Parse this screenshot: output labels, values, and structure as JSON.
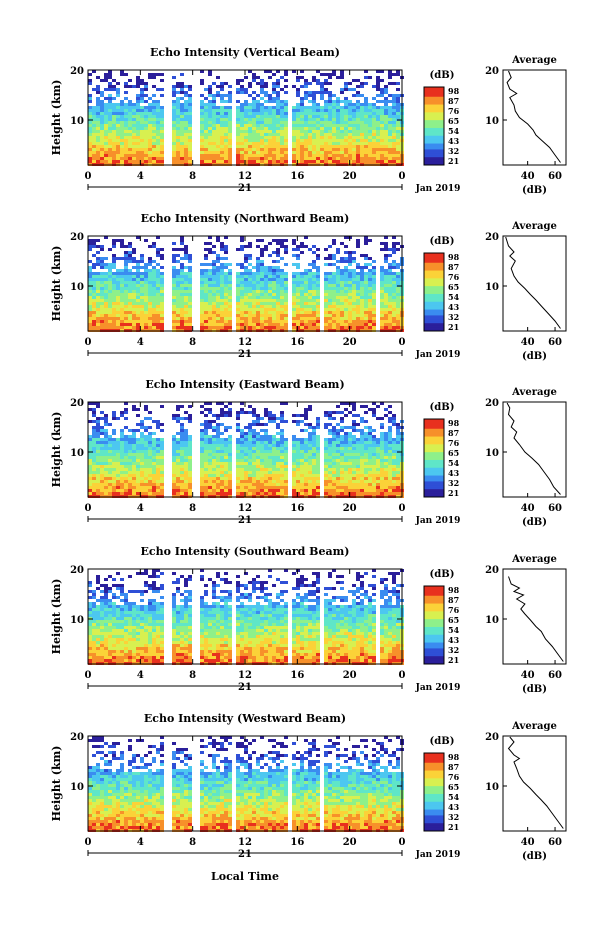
{
  "figure": {
    "xlabel": "Local Time",
    "date_label": "Jan 2019",
    "day_label": "21",
    "ylabel": "Height (km)",
    "cb_unit": "(dB)",
    "avg_title": "Average",
    "avg_xlabel": "(dB)"
  },
  "colormap": [
    "#2b1f9b",
    "#2f4fd6",
    "#3a8cf0",
    "#4cc7f0",
    "#5fe6c8",
    "#8ef08a",
    "#d8f050",
    "#fbd238",
    "#f7902a",
    "#e8301e"
  ],
  "chart_data": [
    {
      "type": "heatmap",
      "title": "Echo Intensity (Vertical Beam)",
      "x_ticks": [
        "0",
        "4",
        "8",
        "12",
        "16",
        "20",
        "0"
      ],
      "y_ticks": [
        "10",
        "20"
      ],
      "ylim": [
        1,
        20
      ],
      "xlim": [
        0,
        24
      ],
      "colorbar_ticks": [
        "98",
        "87",
        "76",
        "65",
        "54",
        "43",
        "32",
        "21"
      ],
      "gaps_hours": [
        [
          5.8,
          6.3
        ],
        [
          7.8,
          8.3
        ],
        [
          10.9,
          11.3
        ],
        [
          15.2,
          15.5
        ],
        [
          15.9,
          16.2
        ]
      ],
      "avg_profile": {
        "type": "line",
        "title": "Average",
        "xlabel": "(dB)",
        "x_ticks": [
          "40",
          "60"
        ],
        "y_ticks": [
          "10",
          "20"
        ],
        "xlim": [
          22,
          68
        ],
        "ylim": [
          1,
          20
        ]
      },
      "profile_points": [
        [
          64,
          1.5
        ],
        [
          60,
          3
        ],
        [
          56,
          4.5
        ],
        [
          50,
          6
        ],
        [
          46,
          7
        ],
        [
          44,
          8
        ],
        [
          40,
          9.2
        ],
        [
          34,
          10.5
        ],
        [
          31,
          11.8
        ],
        [
          30,
          13
        ],
        [
          27,
          14.5
        ],
        [
          32,
          15.3
        ],
        [
          27,
          16.2
        ],
        [
          25,
          17.5
        ],
        [
          28,
          18.5
        ],
        [
          26,
          19.8
        ]
      ]
    },
    {
      "type": "heatmap",
      "title": "Echo Intensity (Northward Beam)",
      "x_ticks": [
        "0",
        "4",
        "8",
        "12",
        "16",
        "20",
        "0"
      ],
      "y_ticks": [
        "10",
        "20"
      ],
      "ylim": [
        1,
        20
      ],
      "xlim": [
        0,
        24
      ],
      "colorbar_ticks": [
        "98",
        "87",
        "76",
        "65",
        "54",
        "43",
        "32",
        "21"
      ],
      "gaps_hours": [
        [
          5.8,
          6.3
        ],
        [
          7.8,
          8.3
        ],
        [
          10.9,
          11.3
        ],
        [
          15.2,
          15.5
        ],
        [
          15.9,
          16.2
        ],
        [
          17.6,
          17.9
        ],
        [
          21.8,
          22.2
        ]
      ],
      "avg_profile": {
        "type": "line",
        "title": "Average",
        "xlabel": "(dB)",
        "x_ticks": [
          "40",
          "60"
        ],
        "y_ticks": [
          "10",
          "20"
        ],
        "xlim": [
          22,
          68
        ],
        "ylim": [
          1,
          20
        ]
      },
      "profile_points": [
        [
          64,
          1.5
        ],
        [
          60,
          3
        ],
        [
          55,
          4.5
        ],
        [
          50,
          6
        ],
        [
          46,
          7.2
        ],
        [
          42,
          8.3
        ],
        [
          38,
          9.5
        ],
        [
          33,
          10.8
        ],
        [
          30,
          12
        ],
        [
          28,
          13.5
        ],
        [
          31,
          15
        ],
        [
          27,
          16
        ],
        [
          30,
          16.8
        ],
        [
          26,
          18
        ],
        [
          24,
          19.8
        ]
      ]
    },
    {
      "type": "heatmap",
      "title": "Echo Intensity (Eastward Beam)",
      "x_ticks": [
        "0",
        "4",
        "8",
        "12",
        "16",
        "20",
        "0"
      ],
      "y_ticks": [
        "10",
        "20"
      ],
      "ylim": [
        1,
        20
      ],
      "xlim": [
        0,
        24
      ],
      "colorbar_ticks": [
        "98",
        "87",
        "76",
        "65",
        "54",
        "43",
        "32",
        "21"
      ],
      "gaps_hours": [
        [
          5.8,
          6.3
        ],
        [
          7.8,
          8.3
        ],
        [
          10.9,
          11.3
        ],
        [
          15.2,
          15.5
        ],
        [
          15.9,
          16.2
        ],
        [
          17.6,
          17.9
        ]
      ],
      "avg_profile": {
        "type": "line",
        "title": "Average",
        "xlabel": "(dB)",
        "x_ticks": [
          "40",
          "60"
        ],
        "y_ticks": [
          "10",
          "20"
        ],
        "xlim": [
          22,
          68
        ],
        "ylim": [
          1,
          20
        ]
      },
      "profile_points": [
        [
          64,
          1.5
        ],
        [
          59,
          3
        ],
        [
          56,
          4.5
        ],
        [
          52,
          6
        ],
        [
          48,
          7.5
        ],
        [
          43,
          8.8
        ],
        [
          38,
          10
        ],
        [
          34,
          11.5
        ],
        [
          30,
          12.8
        ],
        [
          32,
          14
        ],
        [
          28,
          15
        ],
        [
          30,
          16.2
        ],
        [
          26,
          17.5
        ],
        [
          27,
          18.8
        ],
        [
          25,
          19.8
        ]
      ]
    },
    {
      "type": "heatmap",
      "title": "Echo Intensity (Southward Beam)",
      "x_ticks": [
        "0",
        "4",
        "8",
        "12",
        "16",
        "20",
        "0"
      ],
      "y_ticks": [
        "10",
        "20"
      ],
      "ylim": [
        1,
        20
      ],
      "xlim": [
        0,
        24
      ],
      "colorbar_ticks": [
        "98",
        "87",
        "76",
        "65",
        "54",
        "43",
        "32",
        "21"
      ],
      "gaps_hours": [
        [
          5.8,
          6.3
        ],
        [
          7.8,
          8.3
        ],
        [
          10.9,
          11.3
        ],
        [
          15.2,
          15.5
        ],
        [
          15.9,
          16.2
        ],
        [
          17.6,
          17.9
        ],
        [
          21.8,
          22.2
        ]
      ],
      "avg_profile": {
        "type": "line",
        "title": "Average",
        "xlabel": "(dB)",
        "x_ticks": [
          "40",
          "60"
        ],
        "y_ticks": [
          "10",
          "20"
        ],
        "xlim": [
          22,
          68
        ],
        "ylim": [
          1,
          20
        ]
      },
      "profile_points": [
        [
          66,
          1.5
        ],
        [
          62,
          3
        ],
        [
          58,
          4.5
        ],
        [
          53,
          6
        ],
        [
          50,
          7.5
        ],
        [
          46,
          8.5
        ],
        [
          42,
          9.8
        ],
        [
          38,
          11
        ],
        [
          35,
          12
        ],
        [
          38,
          13
        ],
        [
          32,
          14
        ],
        [
          37,
          14.8
        ],
        [
          30,
          15.5
        ],
        [
          34,
          16.2
        ],
        [
          28,
          17
        ],
        [
          26,
          18.5
        ]
      ]
    },
    {
      "type": "heatmap",
      "title": "Echo Intensity (Westward Beam)",
      "x_ticks": [
        "0",
        "4",
        "8",
        "12",
        "16",
        "20",
        "0"
      ],
      "y_ticks": [
        "10",
        "20"
      ],
      "ylim": [
        1,
        20
      ],
      "xlim": [
        0,
        24
      ],
      "colorbar_ticks": [
        "98",
        "87",
        "76",
        "65",
        "54",
        "43",
        "32",
        "21"
      ],
      "gaps_hours": [
        [
          5.8,
          6.3
        ],
        [
          7.8,
          8.3
        ],
        [
          10.9,
          11.3
        ],
        [
          15.2,
          15.5
        ],
        [
          15.9,
          16.2
        ],
        [
          17.6,
          17.9
        ]
      ],
      "avg_profile": {
        "type": "line",
        "title": "Average",
        "xlabel": "(dB)",
        "x_ticks": [
          "40",
          "60"
        ],
        "y_ticks": [
          "10",
          "20"
        ],
        "xlim": [
          22,
          68
        ],
        "ylim": [
          1,
          20
        ]
      },
      "profile_points": [
        [
          66,
          1.5
        ],
        [
          62,
          3
        ],
        [
          58,
          4.5
        ],
        [
          54,
          6
        ],
        [
          50,
          7.2
        ],
        [
          46,
          8.3
        ],
        [
          42,
          9.5
        ],
        [
          37,
          10.8
        ],
        [
          34,
          12
        ],
        [
          32,
          13.5
        ],
        [
          30,
          14.8
        ],
        [
          34,
          15.5
        ],
        [
          30,
          16.2
        ],
        [
          26,
          17.5
        ],
        [
          30,
          18.8
        ],
        [
          27,
          19.8
        ]
      ]
    }
  ]
}
